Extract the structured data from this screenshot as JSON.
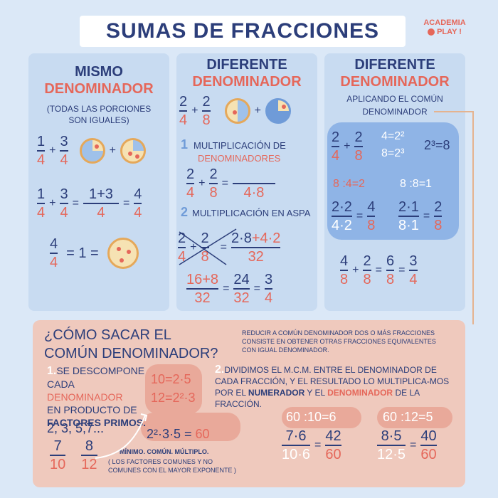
{
  "title": "SUMAS DE FRACCIONES",
  "logo": {
    "line1": "ACADEMIA",
    "line2": "PLAY !"
  },
  "panel1": {
    "heading1": "MISMO",
    "heading2": "DENOMINADOR",
    "note1": "(TODAS LAS PORCIONES",
    "note2": "SON IGUALES)",
    "ex1": {
      "a_num": "1",
      "a_den": "4",
      "b_num": "3",
      "b_den": "4"
    },
    "ex2": {
      "a_num": "1",
      "a_den": "4",
      "b_num": "3",
      "b_den": "4",
      "sum_num": "1+3",
      "sum_den": "4",
      "res_num": "4",
      "res_den": "4"
    },
    "ex3": {
      "num": "4",
      "den": "4",
      "eq": "= 1 ="
    }
  },
  "panel2": {
    "heading1": "DIFERENTE",
    "heading2": "DENOMINADOR",
    "ex": {
      "a_num": "2",
      "a_den": "4",
      "b_num": "2",
      "b_den": "8"
    },
    "step1_num": "1",
    "step1_a": "MULTIPLICACIÓN DE",
    "step1_b": "DENOMINADORES",
    "m1": {
      "a_num": "2",
      "a_den": "4",
      "b_num": "2",
      "b_den": "8",
      "res_den": "4·8"
    },
    "step2_num": "2",
    "step2": "MULTIPLICACIÓN EN ASPA",
    "m2": {
      "a_num": "2",
      "a_den": "4",
      "b_num": "2",
      "b_den": "8",
      "res_num_a": "2·8",
      "res_num_b": "+4·2",
      "res_den": "32"
    },
    "fin": {
      "a_num": "16+8",
      "a_den": "32",
      "b_num": "24",
      "b_den": "32",
      "c_num": "3",
      "c_den": "4"
    }
  },
  "panel3": {
    "heading1": "DIFERENTE",
    "heading2": "DENOMINADOR",
    "sub1": "APLICANDO EL COMÚN",
    "sub2": "DENOMINADOR",
    "ex": {
      "a_num": "2",
      "a_den": "4",
      "b_num": "2",
      "b_den": "8"
    },
    "fact1": "4=2²",
    "fact2": "8=2³",
    "mcm": "2³=8",
    "div1": "8 :4=2",
    "div2": "8 :8=1",
    "eq1": {
      "a_num": "2·2",
      "a_den": "4·2",
      "b_num": "4",
      "b_den": "8"
    },
    "eq2": {
      "a_num": "2·1",
      "a_den": "8·1",
      "b_num": "2",
      "b_den": "8"
    },
    "fin": {
      "a_num": "4",
      "a_den": "8",
      "b_num": "2",
      "b_den": "8",
      "c_num": "6",
      "c_den": "8",
      "d_num": "3",
      "d_den": "4"
    }
  },
  "bottom": {
    "question1": "¿CÓMO SACAR EL",
    "question2": "COMÚN DENOMINADOR?",
    "intro": "REDUCIR A COMÚN DENOMINADOR DOS O MÁS FRACCIONES CONSISTE EN OBTENER OTRAS FRACCIONES EQUIVALENTES CON IGUAL DENOMINADOR.",
    "s1_num": "1.",
    "s1_a": "SE   DESCOMPONE",
    "s1_b": "CADA",
    "s1_c": "DENOMINADOR",
    "s1_d": "EN PRODUCTO DE",
    "s1_e": "FACTORES PRIMOS.",
    "primes": "2, 3, 5,7...",
    "f1": {
      "num": "7",
      "den": "10"
    },
    "f2": {
      "num": "8",
      "den": "12"
    },
    "d1": "10=2·5",
    "d2": "12=2²·3",
    "mcm_a": "2²·3·5 =",
    "mcm_b": "60",
    "mcm_label": "MÍNIMO. COMÚN. MÚLTIPLO.",
    "mcm_note1": "( LOS FACTORES COMUNES Y NO",
    "mcm_note2": "COMUNES CON EL MAYOR EXPONENTE )",
    "s2_num": "2.",
    "s2_a": "DIVIDIMOS EL M.C.M. ENTRE EL DENOMINADOR DE CADA FRACCIÓN, Y EL RESULTADO LO MULTIPLICA-MOS POR EL",
    "s2_b": "NUMERADOR",
    "s2_c": "Y EL",
    "s2_d": "DENOMINADOR",
    "s2_e": "DE LA FRACCIÓN.",
    "div1": "60 :10=6",
    "div2": "60 :12=5",
    "r1": {
      "a_num": "7·6",
      "a_den": "10·6",
      "b_num": "42",
      "b_den": "60"
    },
    "r2": {
      "a_num": "8·5",
      "a_den": "12·5",
      "b_num": "40",
      "b_den": "60"
    }
  }
}
